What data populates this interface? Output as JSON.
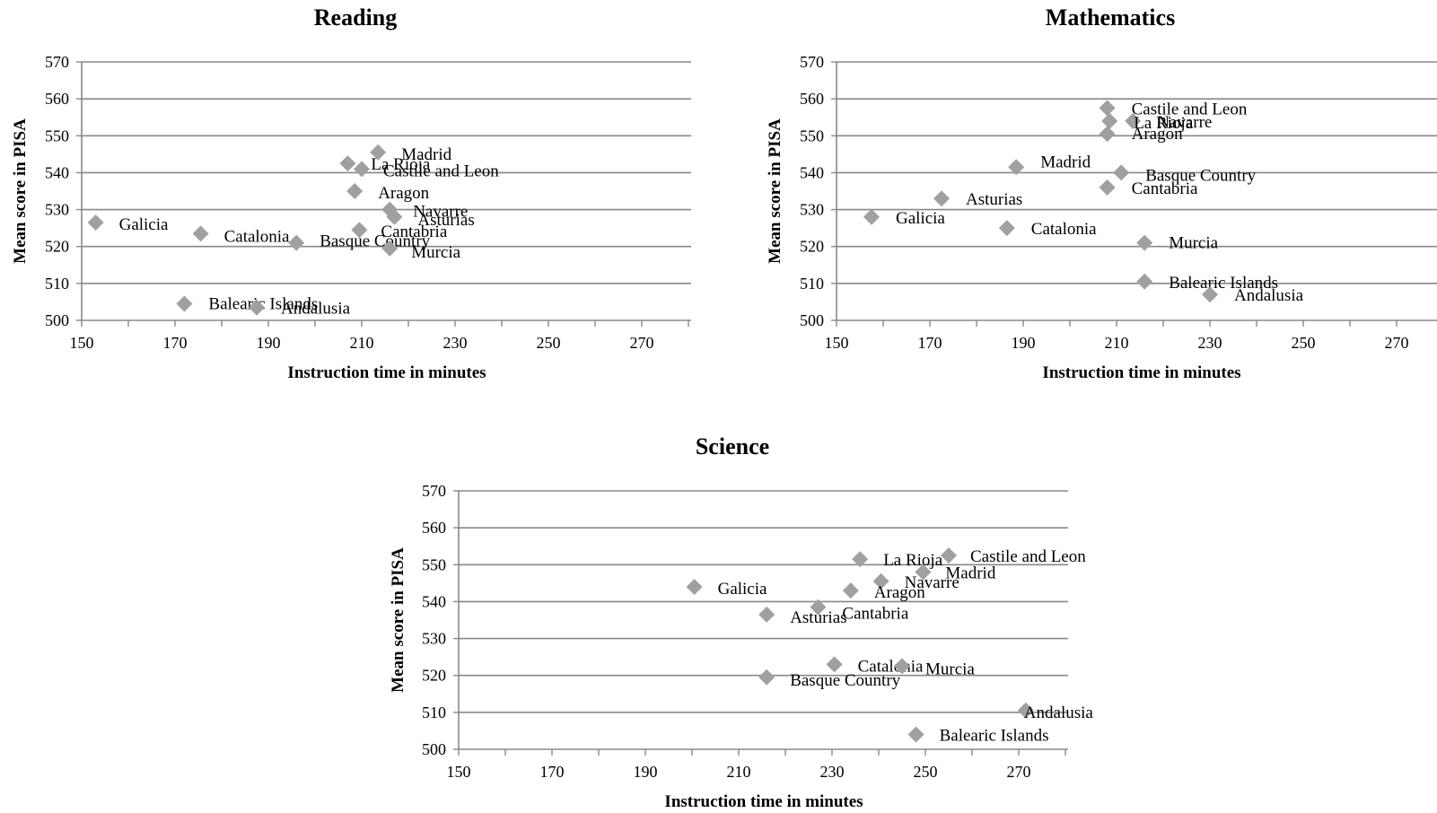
{
  "chart_data": [
    {
      "type": "scatter",
      "title": "Reading",
      "xlabel": "Instruction time in minutes",
      "ylabel": "Mean score in PISA",
      "xlim": [
        150,
        280
      ],
      "ylim": [
        500,
        570
      ],
      "xticks": [
        150,
        170,
        190,
        210,
        230,
        250,
        270
      ],
      "yticks": [
        500,
        510,
        520,
        530,
        540,
        550,
        560,
        570
      ],
      "grid": "horizontal",
      "marker_color": "#a0a0a0",
      "points": [
        {
          "label": "Madrid",
          "x": 213.5,
          "y": 545.5
        },
        {
          "label": "La Rioja",
          "x": 207,
          "y": 542.5
        },
        {
          "label": "Castile and Leon",
          "x": 210,
          "y": 541
        },
        {
          "label": "Aragon",
          "x": 208.5,
          "y": 535
        },
        {
          "label": "Navarre",
          "x": 216,
          "y": 530
        },
        {
          "label": "Asturias",
          "x": 217,
          "y": 528
        },
        {
          "label": "Galicia",
          "x": 153,
          "y": 526.5
        },
        {
          "label": "Cantabria",
          "x": 209.5,
          "y": 524.5
        },
        {
          "label": "Catalonia",
          "x": 175.5,
          "y": 523.5
        },
        {
          "label": "Basque Country",
          "x": 196,
          "y": 521
        },
        {
          "label": "Murcia",
          "x": 216,
          "y": 519.5
        },
        {
          "label": "Balearic Islands",
          "x": 172,
          "y": 504.5
        },
        {
          "label": "Andalusia",
          "x": 187.5,
          "y": 503.5
        }
      ]
    },
    {
      "type": "scatter",
      "title": "Mathematics",
      "xlabel": "Instruction time in minutes",
      "ylabel": "Mean score in PISA",
      "xlim": [
        150,
        280
      ],
      "ylim": [
        500,
        570
      ],
      "xticks": [
        150,
        170,
        190,
        210,
        230,
        250,
        270
      ],
      "yticks": [
        500,
        510,
        520,
        530,
        540,
        550,
        560,
        570
      ],
      "grid": "horizontal",
      "marker_color": "#a0a0a0",
      "points": [
        {
          "label": "Castile and Leon",
          "x": 208,
          "y": 557.5
        },
        {
          "label": "Navarre",
          "x": 213.5,
          "y": 554
        },
        {
          "label": "La Rioja",
          "x": 208.5,
          "y": 554
        },
        {
          "label": "Aragon",
          "x": 208,
          "y": 550.5
        },
        {
          "label": "Madrid",
          "x": 188.5,
          "y": 541.5
        },
        {
          "label": "Basque Country",
          "x": 211,
          "y": 540
        },
        {
          "label": "Cantabria",
          "x": 208,
          "y": 536
        },
        {
          "label": "Asturias",
          "x": 172.5,
          "y": 533
        },
        {
          "label": "Galicia",
          "x": 157.5,
          "y": 528
        },
        {
          "label": "Catalonia",
          "x": 186.5,
          "y": 525
        },
        {
          "label": "Murcia",
          "x": 216,
          "y": 521
        },
        {
          "label": "Balearic Islands",
          "x": 216,
          "y": 510.5
        },
        {
          "label": "Andalusia",
          "x": 230,
          "y": 507
        }
      ]
    },
    {
      "type": "scatter",
      "title": "Science",
      "xlabel": "Instruction time in minutes",
      "ylabel": "Mean score in PISA",
      "xlim": [
        150,
        280
      ],
      "ylim": [
        500,
        570
      ],
      "xticks": [
        150,
        170,
        190,
        210,
        230,
        250,
        270
      ],
      "yticks": [
        500,
        510,
        520,
        530,
        540,
        550,
        560,
        570
      ],
      "grid": "horizontal",
      "marker_color": "#a0a0a0",
      "points": [
        {
          "label": "Castile and Leon",
          "x": 255,
          "y": 552.5
        },
        {
          "label": "La Rioja",
          "x": 236,
          "y": 551.5
        },
        {
          "label": "Madrid",
          "x": 249.5,
          "y": 548
        },
        {
          "label": "Navarre",
          "x": 240.5,
          "y": 545.5
        },
        {
          "label": "Galicia",
          "x": 200.5,
          "y": 544
        },
        {
          "label": "Aragon",
          "x": 234,
          "y": 543
        },
        {
          "label": "Cantabria",
          "x": 227,
          "y": 538.5
        },
        {
          "label": "Asturias",
          "x": 216,
          "y": 536.5
        },
        {
          "label": "Catalonia",
          "x": 230.5,
          "y": 523
        },
        {
          "label": "Murcia",
          "x": 245,
          "y": 522.5
        },
        {
          "label": "Basque Country",
          "x": 216,
          "y": 519.5
        },
        {
          "label": "Andalusia",
          "x": 271.5,
          "y": 510.5
        },
        {
          "label": "Balearic Islands",
          "x": 248,
          "y": 504
        }
      ]
    }
  ]
}
